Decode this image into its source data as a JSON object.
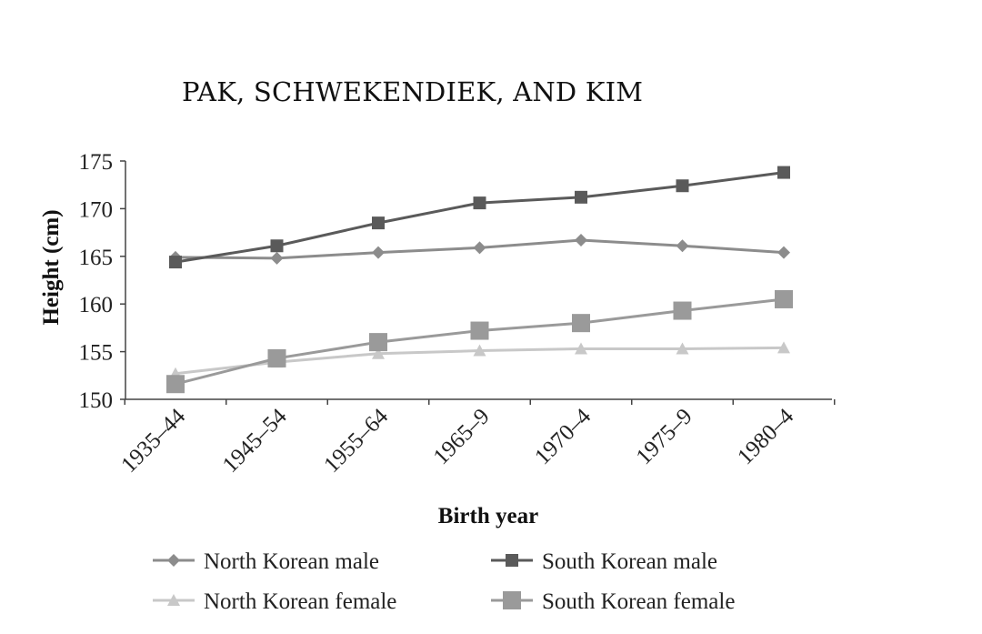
{
  "header": {
    "running_title": "PAK, SCHWEKENDIEK, AND KIM"
  },
  "chart_data": {
    "type": "line",
    "categories": [
      "1935–44",
      "1945–54",
      "1955–64",
      "1965–9",
      "1970–4",
      "1975–9",
      "1980–4"
    ],
    "series": [
      {
        "name": "North Korean male",
        "marker": "diamond",
        "color": "#8c8c8c",
        "values": [
          164.9,
          164.8,
          165.4,
          165.9,
          166.7,
          166.1,
          165.4
        ]
      },
      {
        "name": "South Korean male",
        "marker": "square",
        "color": "#5a5a5a",
        "values": [
          164.4,
          166.1,
          168.5,
          170.6,
          171.2,
          172.4,
          173.8
        ]
      },
      {
        "name": "North Korean female",
        "marker": "triangle",
        "color": "#c8c8c8",
        "values": [
          152.7,
          153.9,
          154.8,
          155.1,
          155.3,
          155.3,
          155.4
        ]
      },
      {
        "name": "South Korean female",
        "marker": "square-large",
        "color": "#9a9a9a",
        "values": [
          151.6,
          154.3,
          156.0,
          157.2,
          158.0,
          159.3,
          160.5
        ]
      }
    ],
    "xlabel": "Birth year",
    "ylabel": "Height (cm)",
    "ylim": [
      150,
      175
    ],
    "yticks": [
      150,
      155,
      160,
      165,
      170,
      175
    ],
    "grid": false,
    "legend_position": "bottom"
  }
}
